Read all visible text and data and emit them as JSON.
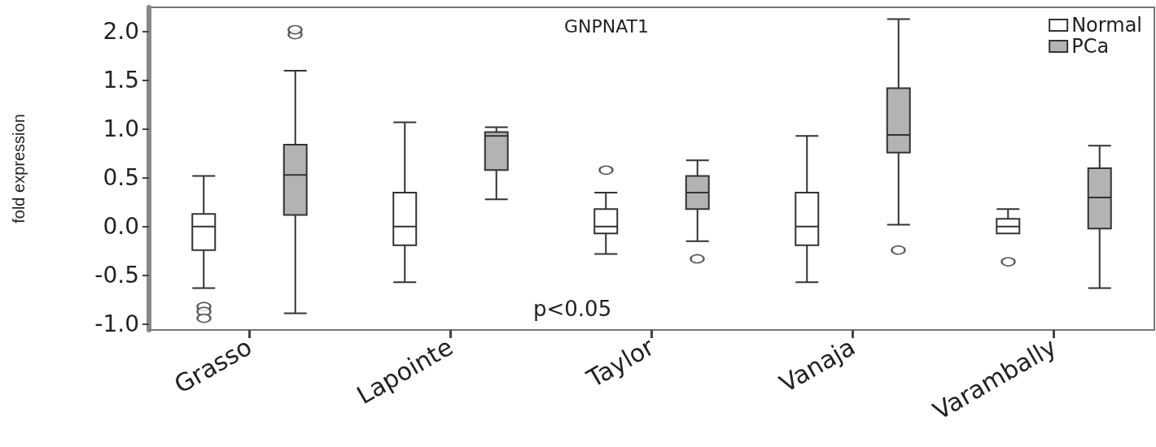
{
  "chart_data": {
    "type": "box",
    "title": "GNPNAT1",
    "ylabel": "fold expression",
    "annotations": [
      "p<0.05"
    ],
    "categories": [
      "Grasso",
      "Lapointe",
      "Taylor",
      "Vanaja",
      "Varambally"
    ],
    "ylim": [
      -1.06,
      2.25
    ],
    "yticks": [
      {
        "value": -1,
        "label": "-1.0"
      },
      -0.5,
      {
        "value": 0,
        "label": "0.0"
      },
      0.5,
      {
        "value": 1,
        "label": "1.0"
      },
      1.5,
      {
        "value": 2,
        "label": "2.0"
      }
    ],
    "legend": "top right",
    "series": [
      {
        "name": "Normal",
        "color": "#ffffff",
        "boxes": [
          {
            "low": -0.63,
            "q1": -0.24,
            "median": 0,
            "q3": 0.13,
            "high": 0.52,
            "outliers": [
              -0.82,
              -0.87,
              -0.94
            ]
          },
          {
            "low": -0.57,
            "q1": -0.19,
            "median": 0,
            "q3": 0.35,
            "high": 1.07
          },
          {
            "low": -0.28,
            "q1": -0.07,
            "median": 0,
            "q3": 0.18,
            "high": 0.35,
            "outliers": [
              0.58
            ]
          },
          {
            "low": -0.57,
            "q1": -0.19,
            "median": 0,
            "q3": 0.35,
            "high": 0.93
          },
          {
            "low": -0.07,
            "q1": -0.07,
            "median": 0,
            "q3": 0.08,
            "high": 0.18,
            "outliers": [
              -0.36
            ]
          }
        ]
      },
      {
        "name": "PCa",
        "color": "#b3b3b3",
        "boxes": [
          {
            "low": -0.89,
            "q1": 0.12,
            "median": 0.53,
            "q3": 0.84,
            "high": 1.6,
            "outliers": [
              1.97,
              2.02
            ]
          },
          {
            "low": 0.28,
            "q1": 0.58,
            "median": 0.93,
            "q3": 0.97,
            "high": 1.02
          },
          {
            "low": -0.15,
            "q1": 0.18,
            "median": 0.35,
            "q3": 0.52,
            "high": 0.68,
            "outliers": [
              -0.33
            ]
          },
          {
            "low": 0.02,
            "q1": 0.76,
            "median": 0.94,
            "q3": 1.42,
            "high": 2.13,
            "outliers": [
              -0.24
            ]
          },
          {
            "low": -0.63,
            "q1": -0.02,
            "median": 0.3,
            "q3": 0.6,
            "high": 0.83
          }
        ]
      }
    ]
  }
}
